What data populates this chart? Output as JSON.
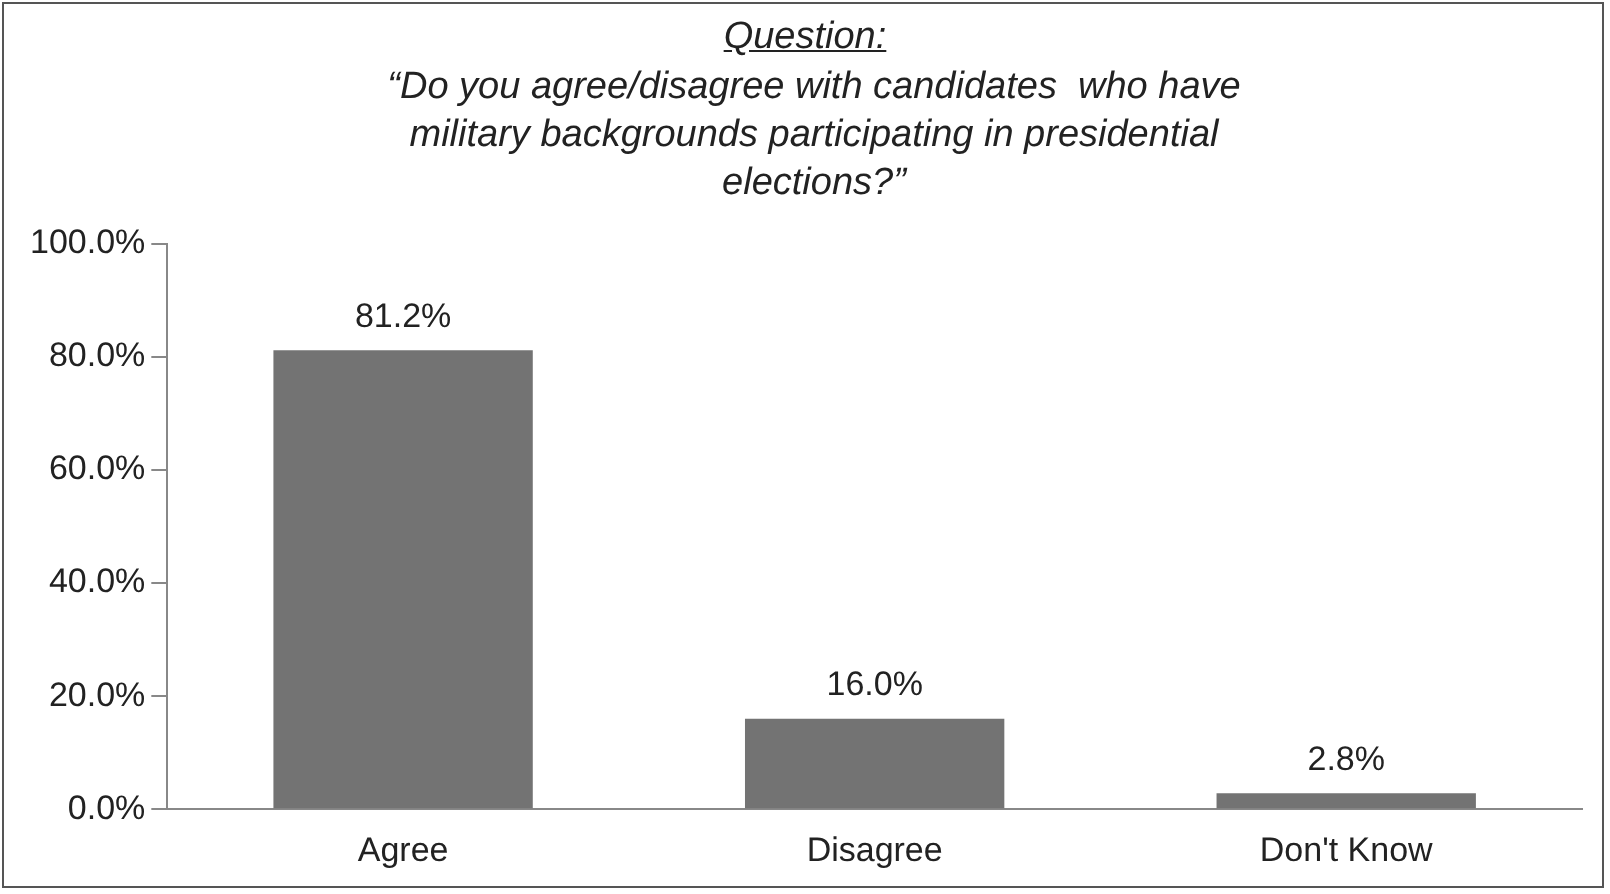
{
  "chart_data": {
    "type": "bar",
    "title": "Question:",
    "subtitle": "“Do you agree/disagree with candidates  who have military backgrounds participating in presidential elections?”",
    "categories": [
      "Agree",
      "Disagree",
      "Don't Know"
    ],
    "values": [
      81.2,
      16.0,
      2.8
    ],
    "value_labels": [
      "81.2%",
      "16.0%",
      "2.8%"
    ],
    "color": "#737373",
    "ylim": [
      0,
      100
    ],
    "yticks": [
      {
        "value": 0,
        "label": "0.0%"
      },
      {
        "value": 20,
        "label": "20.0%"
      },
      {
        "value": 40,
        "label": "40.0%"
      },
      {
        "value": 60,
        "label": "60.0%"
      },
      {
        "value": 80,
        "label": "80.0%"
      },
      {
        "value": 100,
        "label": "100.0%"
      }
    ],
    "grid": false,
    "legend": false
  }
}
